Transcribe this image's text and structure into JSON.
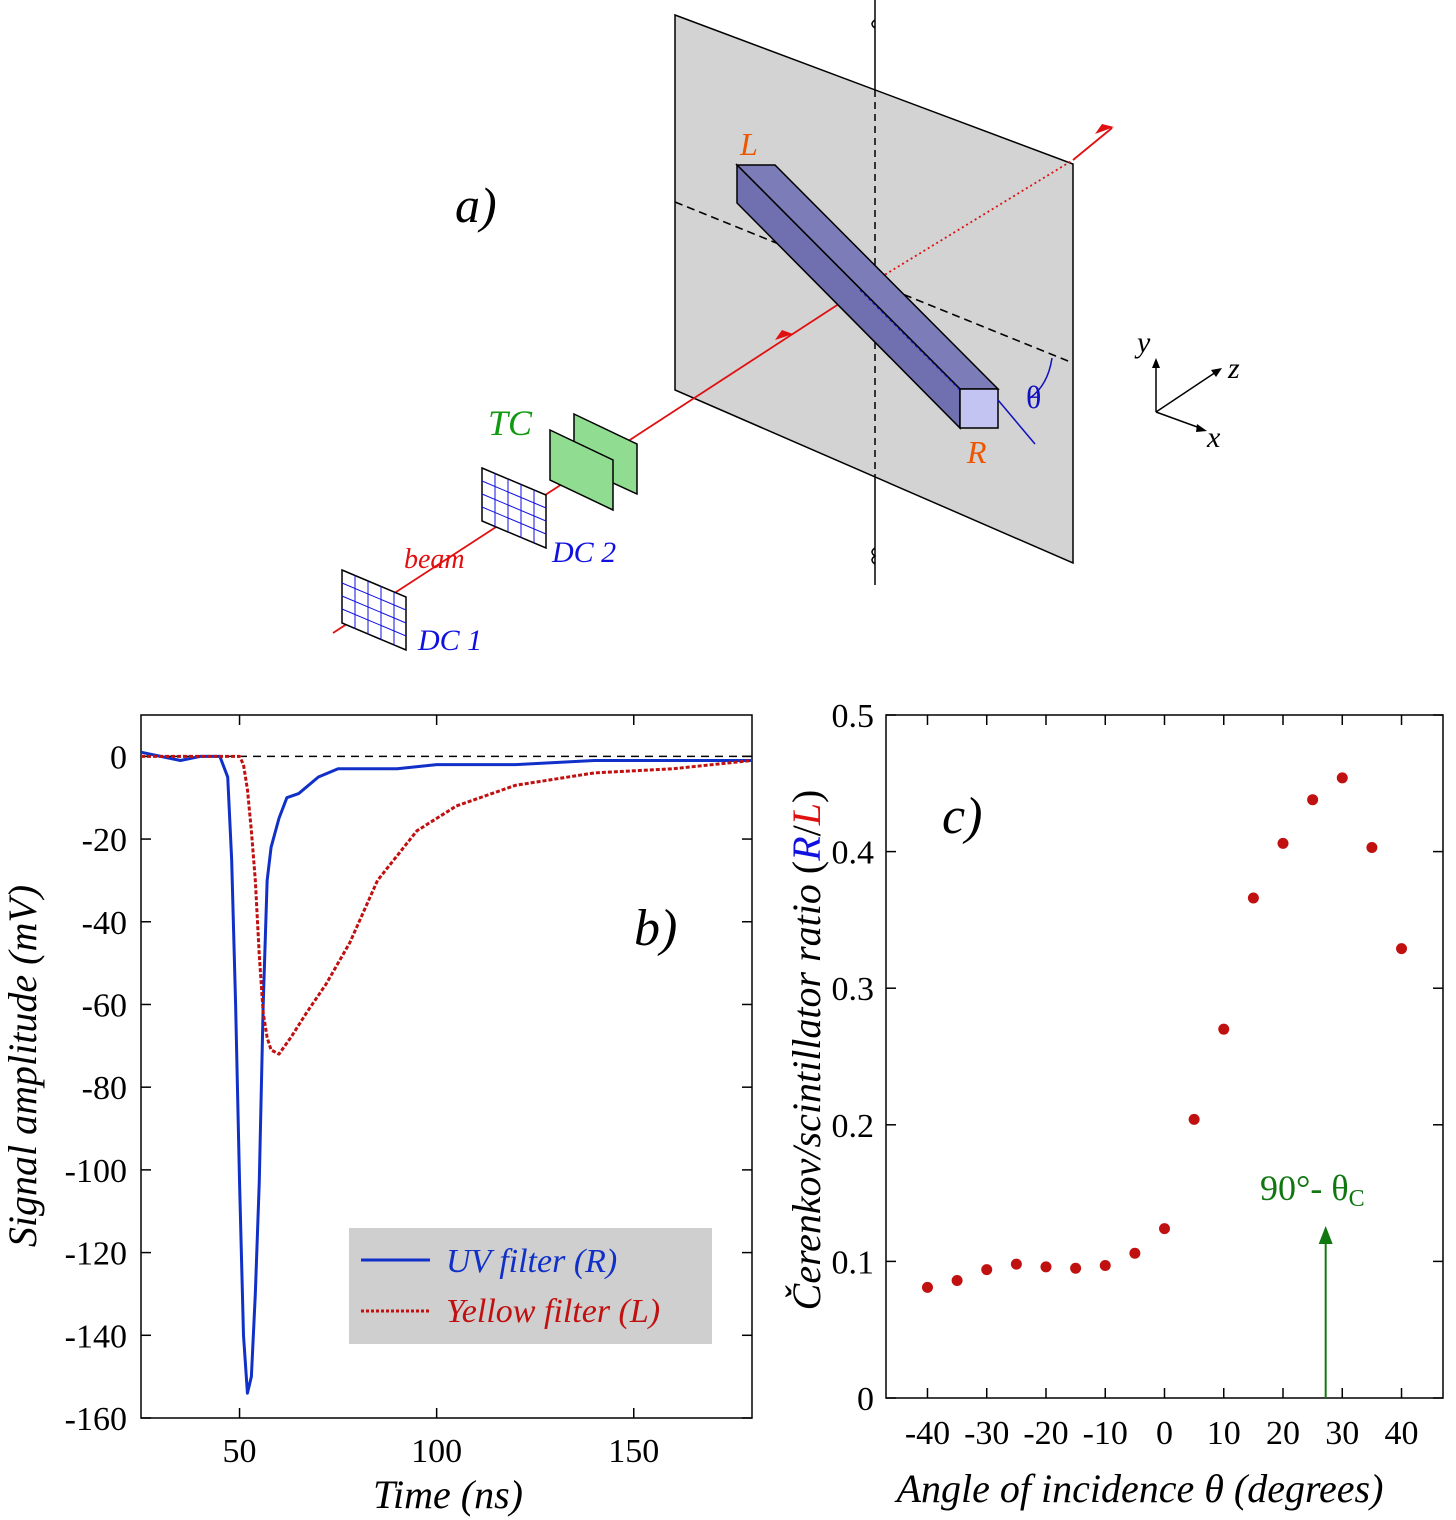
{
  "panel_a": {
    "label": "a)",
    "labels": {
      "L": "L",
      "R": "R",
      "theta": "θ",
      "TC": "TC",
      "DC1": "DC 1",
      "DC2": "DC 2",
      "beam": "beam",
      "x": "x",
      "y": "y",
      "z": "z"
    },
    "colors": {
      "beam": "#e01010",
      "bar": "#7a7ab8",
      "bar_end": "#c4c4f2",
      "plane": "#d3d3d3",
      "tc": "#90dc90",
      "dc": "#1010e0",
      "label_orange": "#ee5500",
      "label_green": "#119911"
    }
  },
  "chart_data": [
    {
      "type": "line",
      "panel_label": "b)",
      "xlabel": "Time (ns)",
      "ylabel": "Signal amplitude (mV)",
      "xlim": [
        25,
        180
      ],
      "ylim": [
        -160,
        10
      ],
      "xticks": [
        50,
        100,
        150
      ],
      "yticks": [
        0,
        -20,
        -40,
        -60,
        -80,
        -100,
        -120,
        -140,
        -160
      ],
      "zero_line": "dashed",
      "legend": "lower-right",
      "series": [
        {
          "name": "UV filter (R)",
          "color": "#1030c8",
          "style": "solid",
          "x": [
            25,
            30,
            35,
            40,
            45,
            47,
            48,
            49,
            50,
            51,
            52,
            53,
            54,
            55,
            56,
            57,
            58,
            60,
            62,
            65,
            70,
            75,
            80,
            90,
            100,
            120,
            140,
            160,
            180
          ],
          "y": [
            1,
            0,
            -1,
            0,
            0,
            -5,
            -25,
            -60,
            -103,
            -140,
            -154,
            -150,
            -130,
            -103,
            -60,
            -30,
            -22,
            -15,
            -10,
            -9,
            -5,
            -3,
            -3,
            -3,
            -2,
            -2,
            -1,
            -1,
            -1
          ]
        },
        {
          "name": "Yellow filter (L)",
          "color": "#c01010",
          "style": "dashed",
          "x": [
            25,
            40,
            50,
            51,
            52,
            53,
            54,
            55,
            56,
            57,
            58,
            60,
            63,
            67,
            72,
            78,
            85,
            95,
            105,
            120,
            140,
            160,
            180
          ],
          "y": [
            0,
            0,
            0,
            -2,
            -8,
            -18,
            -30,
            -48,
            -62,
            -68,
            -71,
            -72,
            -68,
            -62,
            -55,
            -45,
            -30,
            -18,
            -12,
            -7,
            -4,
            -3,
            -1
          ]
        }
      ]
    },
    {
      "type": "scatter",
      "panel_label": "c)",
      "xlabel": "Angle of incidence θ (degrees)",
      "ylabel_prefix": "Čerenkov/scintillator ratio",
      "ylabel_R": "R",
      "ylabel_slash": "/",
      "ylabel_L": "L",
      "xlim": [
        -47,
        47
      ],
      "ylim": [
        0,
        0.5
      ],
      "xticks": [
        -40,
        -30,
        -20,
        -10,
        0,
        10,
        20,
        30,
        40
      ],
      "yticks": [
        0,
        0.1,
        0.2,
        0.3,
        0.4,
        0.5
      ],
      "marker_color": "#c01010",
      "series": [
        {
          "x": [
            -40,
            -35,
            -30,
            -25,
            -20,
            -15,
            -10,
            -5,
            0,
            5,
            10,
            15,
            20,
            25,
            30,
            35,
            40
          ],
          "y": [
            0.081,
            0.086,
            0.094,
            0.098,
            0.096,
            0.095,
            0.097,
            0.106,
            0.124,
            0.204,
            0.27,
            0.366,
            0.406,
            0.438,
            0.454,
            0.403,
            0.329
          ]
        }
      ],
      "annotation": {
        "text": "90°- θ",
        "subscript": "C",
        "x": 27.2,
        "color": "#117711"
      }
    }
  ]
}
